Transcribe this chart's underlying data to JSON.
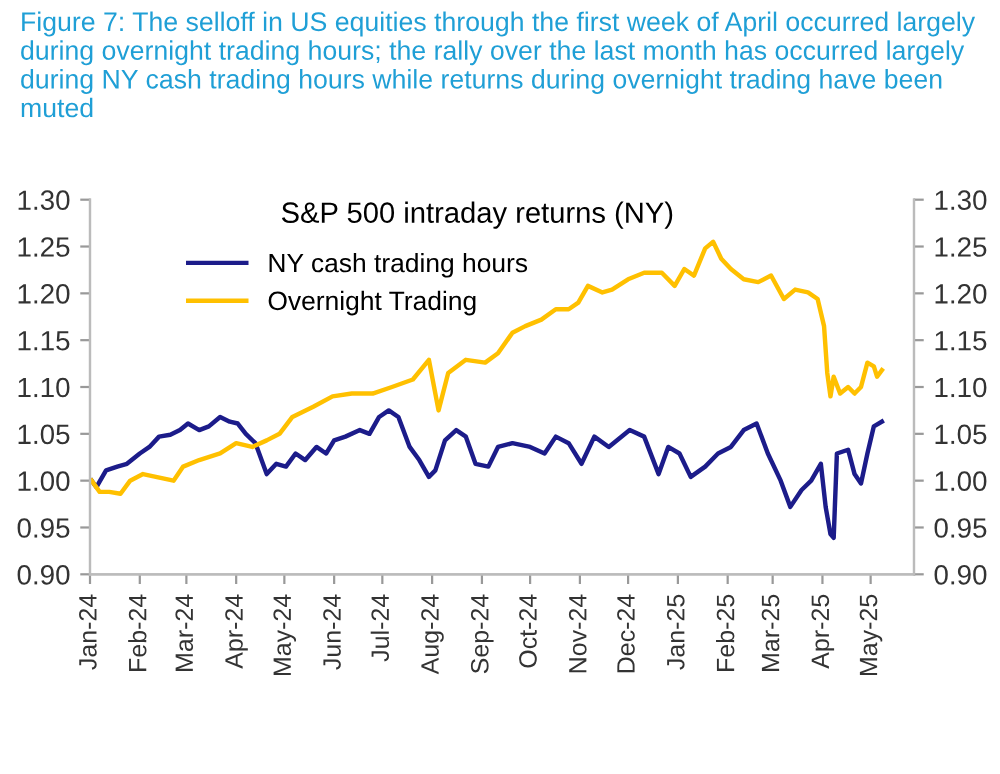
{
  "chart_data": {
    "type": "line",
    "title": "Figure 7: The selloff in US equities through the first week of April occurred largely during overnight trading hours; the rally over the last month has occurred largely during NY cash trading hours while returns during overnight trading have been muted",
    "subtitle": "S&P 500 intraday returns (NY)",
    "xlim": [
      "2024-01-01",
      "2025-05-28"
    ],
    "xticks": [
      {
        "value": "2024-01-01",
        "label": "Jan-24"
      },
      {
        "value": "2024-02-01",
        "label": "Feb-24"
      },
      {
        "value": "2024-03-01",
        "label": "Mar-24"
      },
      {
        "value": "2024-04-01",
        "label": "Apr-24"
      },
      {
        "value": "2024-05-01",
        "label": "May-24"
      },
      {
        "value": "2024-06-01",
        "label": "Jun-24"
      },
      {
        "value": "2024-07-01",
        "label": "Jul-24"
      },
      {
        "value": "2024-08-01",
        "label": "Aug-24"
      },
      {
        "value": "2024-09-01",
        "label": "Sep-24"
      },
      {
        "value": "2024-10-01",
        "label": "Oct-24"
      },
      {
        "value": "2024-11-01",
        "label": "Nov-24"
      },
      {
        "value": "2024-12-01",
        "label": "Dec-24"
      },
      {
        "value": "2025-01-01",
        "label": "Jan-25"
      },
      {
        "value": "2025-02-01",
        "label": "Feb-25"
      },
      {
        "value": "2025-03-01",
        "label": "Mar-25"
      },
      {
        "value": "2025-04-01",
        "label": "Apr-25"
      },
      {
        "value": "2025-05-01",
        "label": "May-25"
      }
    ],
    "ylim": [
      0.9,
      1.3
    ],
    "yticks": [
      {
        "value": 0.9,
        "label": "0.90"
      },
      {
        "value": 0.95,
        "label": "0.95"
      },
      {
        "value": 1.0,
        "label": "1.00"
      },
      {
        "value": 1.05,
        "label": "1.05"
      },
      {
        "value": 1.1,
        "label": "1.10"
      },
      {
        "value": 1.15,
        "label": "1.15"
      },
      {
        "value": 1.2,
        "label": "1.20"
      },
      {
        "value": 1.25,
        "label": "1.25"
      },
      {
        "value": 1.3,
        "label": "1.30"
      }
    ],
    "y2lim": [
      0.9,
      1.3
    ],
    "y2ticks": [
      {
        "value": 0.9,
        "label": "0.90"
      },
      {
        "value": 0.95,
        "label": "0.95"
      },
      {
        "value": 1.0,
        "label": "1.00"
      },
      {
        "value": 1.05,
        "label": "1.05"
      },
      {
        "value": 1.1,
        "label": "1.10"
      },
      {
        "value": 1.15,
        "label": "1.15"
      },
      {
        "value": 1.2,
        "label": "1.20"
      },
      {
        "value": 1.25,
        "label": "1.25"
      },
      {
        "value": 1.3,
        "label": "1.30"
      }
    ],
    "grid": false,
    "legend": "top left",
    "marker": "none",
    "line_style": "solid",
    "series": [
      {
        "name": "NY cash trading hours",
        "color": "#1c1c8a",
        "x": [
          "2024-01-02",
          "2024-01-05",
          "2024-01-11",
          "2024-01-18",
          "2024-01-24",
          "2024-02-01",
          "2024-02-07",
          "2024-02-13",
          "2024-02-20",
          "2024-02-26",
          "2024-03-02",
          "2024-03-09",
          "2024-03-15",
          "2024-03-22",
          "2024-03-28",
          "2024-04-02",
          "2024-04-07",
          "2024-04-13",
          "2024-04-20",
          "2024-04-26",
          "2024-05-02",
          "2024-05-08",
          "2024-05-14",
          "2024-05-21",
          "2024-05-27",
          "2024-06-01",
          "2024-06-08",
          "2024-06-17",
          "2024-06-23",
          "2024-06-29",
          "2024-07-05",
          "2024-07-11",
          "2024-07-18",
          "2024-07-24",
          "2024-07-30",
          "2024-08-03",
          "2024-08-09",
          "2024-08-16",
          "2024-08-22",
          "2024-08-28",
          "2024-09-05",
          "2024-09-11",
          "2024-09-20",
          "2024-10-01",
          "2024-10-10",
          "2024-10-17",
          "2024-10-25",
          "2024-11-02",
          "2024-11-10",
          "2024-11-19",
          "2024-12-02",
          "2024-12-11",
          "2024-12-20",
          "2024-12-26",
          "2025-01-02",
          "2025-01-09",
          "2025-01-18",
          "2025-01-26",
          "2025-02-03",
          "2025-02-11",
          "2025-02-19",
          "2025-02-26",
          "2025-03-06",
          "2025-03-12",
          "2025-03-19",
          "2025-03-25",
          "2025-03-31",
          "2025-04-03",
          "2025-04-06",
          "2025-04-08",
          "2025-04-10",
          "2025-04-17",
          "2025-04-21",
          "2025-04-25",
          "2025-04-29",
          "2025-05-03",
          "2025-05-08"
        ],
        "values": [
          1.0,
          0.993,
          1.011,
          1.015,
          1.018,
          1.029,
          1.036,
          1.047,
          1.049,
          1.054,
          1.061,
          1.054,
          1.058,
          1.068,
          1.063,
          1.061,
          1.05,
          1.04,
          1.007,
          1.018,
          1.015,
          1.029,
          1.022,
          1.036,
          1.029,
          1.043,
          1.047,
          1.054,
          1.05,
          1.068,
          1.075,
          1.068,
          1.036,
          1.022,
          1.004,
          1.011,
          1.043,
          1.054,
          1.047,
          1.018,
          1.015,
          1.036,
          1.04,
          1.036,
          1.029,
          1.047,
          1.04,
          1.018,
          1.047,
          1.036,
          1.054,
          1.047,
          1.007,
          1.036,
          1.029,
          1.004,
          1.015,
          1.029,
          1.036,
          1.054,
          1.061,
          1.029,
          1.0,
          0.972,
          0.99,
          1.0,
          1.018,
          0.972,
          0.943,
          0.939,
          1.029,
          1.033,
          1.007,
          0.997,
          1.029,
          1.058,
          1.063
        ]
      },
      {
        "name": "Overnight Trading",
        "color": "#ffc000",
        "x": [
          "2024-01-02",
          "2024-01-07",
          "2024-01-13",
          "2024-01-20",
          "2024-01-26",
          "2024-02-03",
          "2024-02-11",
          "2024-02-22",
          "2024-02-28",
          "2024-03-09",
          "2024-03-22",
          "2024-04-01",
          "2024-04-11",
          "2024-04-20",
          "2024-04-28",
          "2024-05-06",
          "2024-05-19",
          "2024-05-31",
          "2024-06-12",
          "2024-06-25",
          "2024-07-07",
          "2024-07-20",
          "2024-07-30",
          "2024-08-05",
          "2024-08-11",
          "2024-08-22",
          "2024-09-03",
          "2024-09-11",
          "2024-09-20",
          "2024-09-28",
          "2024-10-08",
          "2024-10-17",
          "2024-10-25",
          "2024-10-31",
          "2024-11-06",
          "2024-11-15",
          "2024-11-21",
          "2024-12-01",
          "2024-12-11",
          "2024-12-22",
          "2024-12-30",
          "2025-01-05",
          "2025-01-11",
          "2025-01-18",
          "2025-01-23",
          "2025-01-28",
          "2025-02-03",
          "2025-02-11",
          "2025-02-20",
          "2025-02-28",
          "2025-03-08",
          "2025-03-15",
          "2025-03-23",
          "2025-03-29",
          "2025-04-02",
          "2025-04-04",
          "2025-04-06",
          "2025-04-08",
          "2025-04-12",
          "2025-04-17",
          "2025-04-21",
          "2025-04-25",
          "2025-04-29",
          "2025-05-03",
          "2025-05-05",
          "2025-05-08"
        ],
        "values": [
          1.0,
          0.988,
          0.988,
          0.986,
          1.0,
          1.007,
          1.004,
          1.0,
          1.015,
          1.022,
          1.029,
          1.04,
          1.036,
          1.043,
          1.05,
          1.068,
          1.079,
          1.09,
          1.093,
          1.093,
          1.1,
          1.108,
          1.129,
          1.075,
          1.115,
          1.129,
          1.126,
          1.136,
          1.158,
          1.165,
          1.172,
          1.183,
          1.183,
          1.19,
          1.208,
          1.201,
          1.204,
          1.215,
          1.222,
          1.222,
          1.208,
          1.226,
          1.219,
          1.248,
          1.255,
          1.237,
          1.226,
          1.215,
          1.212,
          1.219,
          1.194,
          1.204,
          1.201,
          1.194,
          1.165,
          1.115,
          1.09,
          1.111,
          1.093,
          1.1,
          1.093,
          1.1,
          1.126,
          1.122,
          1.111,
          1.118
        ]
      }
    ]
  }
}
